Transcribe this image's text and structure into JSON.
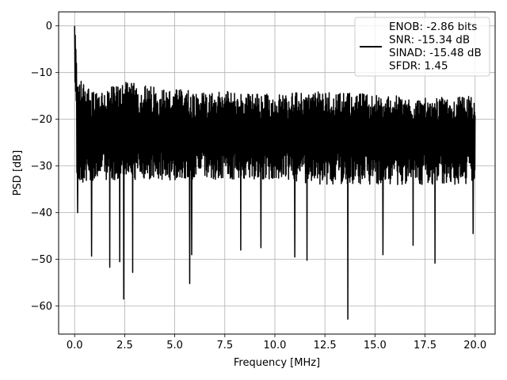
{
  "chart_data": {
    "type": "line",
    "xlabel": "Frequency [MHz]",
    "ylabel": "PSD [dB]",
    "xlim": [
      -0.8,
      21.0
    ],
    "ylim": [
      -66,
      3
    ],
    "xticks": [
      0.0,
      2.5,
      5.0,
      7.5,
      10.0,
      12.5,
      15.0,
      17.5,
      20.0
    ],
    "xtick_labels": [
      "0.0",
      "2.5",
      "5.0",
      "7.5",
      "10.0",
      "12.5",
      "15.0",
      "17.5",
      "20.0"
    ],
    "yticks": [
      0,
      -10,
      -20,
      -30,
      -40,
      -50,
      -60
    ],
    "ytick_labels": [
      "0",
      "−10",
      "−20",
      "−30",
      "−40",
      "−50",
      "−60"
    ],
    "grid": true,
    "legend_placement": "top-right",
    "series_color": "#000000",
    "series": [
      {
        "x_range": [
          0.0,
          20.0
        ],
        "peak": {
          "x": 0.0,
          "y": 0.0
        },
        "upper_envelope": {
          "x": [
            0.1,
            1.0,
            2.5,
            5.0,
            7.5,
            10.0,
            12.5,
            15.0,
            17.5,
            20.0
          ],
          "y": [
            -10.5,
            -13.5,
            -12.0,
            -13.5,
            -14.0,
            -14.5,
            -14.0,
            -14.5,
            -15.5,
            -15.0
          ]
        },
        "lower_envelope": {
          "x": [
            0.1,
            1.0,
            2.5,
            5.0,
            7.5,
            10.0,
            12.5,
            15.0,
            17.5,
            20.0
          ],
          "y": [
            -34,
            -33,
            -33,
            -33,
            -33,
            -33,
            -34,
            -34,
            -34,
            -34
          ]
        },
        "dips": [
          {
            "x": 0.15,
            "y": -40.0
          },
          {
            "x": 0.85,
            "y": -49.3
          },
          {
            "x": 1.75,
            "y": -51.7
          },
          {
            "x": 2.25,
            "y": -50.5
          },
          {
            "x": 2.45,
            "y": -58.5
          },
          {
            "x": 2.9,
            "y": -52.8
          },
          {
            "x": 5.75,
            "y": -55.2
          },
          {
            "x": 5.85,
            "y": -49.0
          },
          {
            "x": 8.3,
            "y": -48.0
          },
          {
            "x": 9.3,
            "y": -47.5
          },
          {
            "x": 11.0,
            "y": -49.5
          },
          {
            "x": 11.6,
            "y": -50.2
          },
          {
            "x": 13.65,
            "y": -62.8
          },
          {
            "x": 15.4,
            "y": -49.0
          },
          {
            "x": 16.9,
            "y": -47.0
          },
          {
            "x": 18.0,
            "y": -50.8
          },
          {
            "x": 19.9,
            "y": -44.5
          }
        ]
      }
    ],
    "legend_entries": [
      "ENOB: -2.86 bits",
      "SNR: -15.34 dB",
      "SINAD: -15.48 dB",
      "SFDR: 1.45"
    ]
  }
}
